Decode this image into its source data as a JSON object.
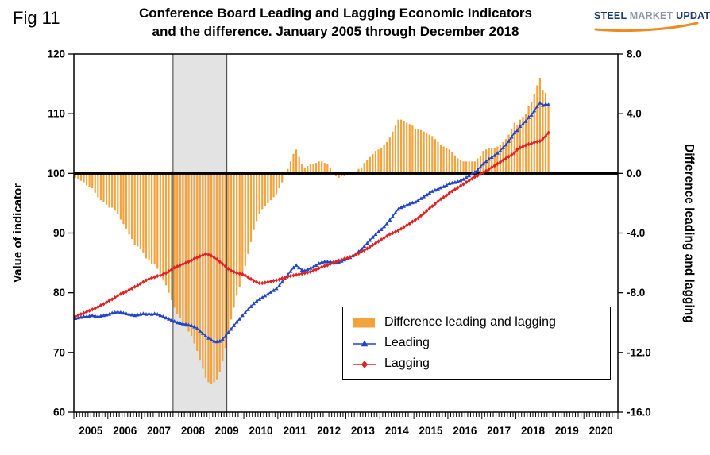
{
  "figure": {
    "fig_label": "Fig 11",
    "title_line1": "Conference Board Leading and Lagging Economic Indicators",
    "title_line2": "and the difference. January 2005 through December 2018"
  },
  "logo": {
    "steel": "STEEL",
    "market": "MARKET",
    "update": "UPDATE",
    "accent_color": "#F08A1C"
  },
  "chart_data": {
    "type": "combo",
    "title": "Conference Board Leading and Lagging Economic Indicators and the difference. January 2005 through December 2018",
    "x": {
      "start": "2005-01",
      "end": "2018-12",
      "frequency": "monthly",
      "axis_start": "2005-01",
      "axis_end": "2020-12",
      "year_labels": [
        2005,
        2006,
        2007,
        2008,
        2009,
        2010,
        2011,
        2012,
        2013,
        2014,
        2015,
        2016,
        2017,
        2018,
        2019,
        2020
      ]
    },
    "left_axis": {
      "label": "Value of indicator",
      "min": 60,
      "max": 120,
      "ticks": [
        120,
        110,
        100,
        90,
        80,
        70,
        60
      ]
    },
    "right_axis": {
      "label": "Difference leading and lagging",
      "min": -16,
      "max": 8,
      "tick_labels": [
        "8.0",
        "4.0",
        "0.0",
        "-4.0",
        "-8.0",
        "-12.0",
        "-16.0"
      ]
    },
    "zero_line_left_value": 100,
    "grid": "off",
    "legend_position": "inside lower right",
    "recession_band": {
      "start": "2007-12",
      "end": "2009-06",
      "fill": "#E3E3E3"
    },
    "series": [
      {
        "name": "Difference leading and lagging",
        "type": "bar",
        "axis": "right",
        "color": "#F2A33C",
        "values": [
          -0.3,
          -0.4,
          -0.5,
          -0.6,
          -0.8,
          -0.9,
          -1.0,
          -1.3,
          -1.6,
          -1.8,
          -1.9,
          -2.1,
          -2.3,
          -2.3,
          -2.5,
          -2.7,
          -3.1,
          -3.4,
          -3.7,
          -4.1,
          -4.4,
          -4.8,
          -4.9,
          -5.1,
          -5.3,
          -5.7,
          -5.8,
          -6.1,
          -6.1,
          -6.4,
          -6.7,
          -7.1,
          -7.5,
          -8.0,
          -8.5,
          -9.0,
          -9.4,
          -9.7,
          -10.0,
          -10.3,
          -10.6,
          -10.9,
          -11.4,
          -11.9,
          -12.5,
          -13.1,
          -13.7,
          -14.0,
          -14.1,
          -14.0,
          -13.8,
          -13.3,
          -12.6,
          -11.7,
          -10.7,
          -9.8,
          -9.0,
          -8.2,
          -7.6,
          -6.9,
          -6.2,
          -5.4,
          -4.6,
          -3.8,
          -3.2,
          -2.7,
          -2.4,
          -2.2,
          -2.0,
          -1.8,
          -1.6,
          -1.4,
          -1.0,
          -0.6,
          -0.1,
          0.3,
          0.8,
          1.3,
          1.6,
          1.1,
          0.6,
          0.4,
          0.5,
          0.6,
          0.6,
          0.7,
          0.8,
          0.8,
          0.7,
          0.6,
          0.4,
          0.1,
          -0.2,
          -0.3,
          -0.2,
          -0.2,
          -0.1,
          -0.1,
          0.0,
          0.1,
          0.3,
          0.4,
          0.7,
          0.9,
          1.1,
          1.3,
          1.5,
          1.6,
          1.7,
          1.9,
          2.1,
          2.4,
          2.8,
          3.2,
          3.6,
          3.6,
          3.5,
          3.4,
          3.3,
          3.2,
          3.0,
          3.0,
          2.9,
          2.8,
          2.7,
          2.6,
          2.5,
          2.3,
          2.1,
          1.9,
          1.8,
          1.7,
          1.6,
          1.4,
          1.2,
          1.0,
          0.9,
          0.8,
          0.8,
          0.8,
          0.8,
          0.8,
          1.0,
          1.2,
          1.5,
          1.6,
          1.7,
          1.7,
          1.7,
          1.8,
          1.9,
          2.1,
          2.3,
          2.6,
          3.0,
          3.4,
          3.2,
          3.6,
          3.8,
          4.0,
          4.5,
          4.8,
          5.3,
          5.9,
          6.4,
          5.6,
          5.4,
          4.7
        ]
      },
      {
        "name": "Leading",
        "type": "line",
        "marker": "triangle",
        "axis": "left",
        "color": "#2244CC",
        "values": [
          75.7,
          75.8,
          75.9,
          76.0,
          76.0,
          76.1,
          76.2,
          76.1,
          76.0,
          76.1,
          76.2,
          76.3,
          76.4,
          76.6,
          76.7,
          76.8,
          76.7,
          76.6,
          76.5,
          76.4,
          76.3,
          76.2,
          76.3,
          76.4,
          76.5,
          76.4,
          76.5,
          76.4,
          76.5,
          76.4,
          76.2,
          76.0,
          75.8,
          75.6,
          75.4,
          75.2,
          75.0,
          74.9,
          74.8,
          74.7,
          74.6,
          74.5,
          74.3,
          74.0,
          73.6,
          73.2,
          72.8,
          72.4,
          72.1,
          71.9,
          71.8,
          71.9,
          72.2,
          72.7,
          73.3,
          73.9,
          74.5,
          75.1,
          75.6,
          76.2,
          76.7,
          77.2,
          77.7,
          78.2,
          78.6,
          78.9,
          79.2,
          79.5,
          79.8,
          80.1,
          80.4,
          80.7,
          81.2,
          81.8,
          82.4,
          83.0,
          83.6,
          84.2,
          84.6,
          84.2,
          83.8,
          83.7,
          83.9,
          84.1,
          84.3,
          84.6,
          84.9,
          85.1,
          85.2,
          85.2,
          85.2,
          85.1,
          85.0,
          85.1,
          85.3,
          85.5,
          85.7,
          85.9,
          86.2,
          86.5,
          86.9,
          87.3,
          87.8,
          88.3,
          88.8,
          89.3,
          89.8,
          90.2,
          90.6,
          91.1,
          91.6,
          92.2,
          92.8,
          93.4,
          94.0,
          94.3,
          94.5,
          94.7,
          94.9,
          95.1,
          95.2,
          95.5,
          95.8,
          96.1,
          96.4,
          96.7,
          97.0,
          97.2,
          97.4,
          97.6,
          97.8,
          98.0,
          98.3,
          98.4,
          98.5,
          98.6,
          98.8,
          99.0,
          99.3,
          99.6,
          99.9,
          100.2,
          100.6,
          101.1,
          101.6,
          102.0,
          102.4,
          102.7,
          103.0,
          103.4,
          103.8,
          104.3,
          104.8,
          105.4,
          106.1,
          106.8,
          107.2,
          107.9,
          108.3,
          108.7,
          109.4,
          109.8,
          110.5,
          111.2,
          111.8,
          111.4,
          111.6,
          111.5
        ]
      },
      {
        "name": "Lagging",
        "type": "line",
        "marker": "diamond",
        "axis": "left",
        "color": "#E02222",
        "values": [
          76.0,
          76.2,
          76.4,
          76.6,
          76.8,
          77.0,
          77.2,
          77.4,
          77.6,
          77.9,
          78.1,
          78.4,
          78.7,
          78.9,
          79.2,
          79.5,
          79.8,
          80.0,
          80.2,
          80.5,
          80.7,
          81.0,
          81.2,
          81.5,
          81.8,
          82.1,
          82.3,
          82.5,
          82.6,
          82.8,
          82.9,
          83.1,
          83.3,
          83.6,
          83.9,
          84.2,
          84.4,
          84.6,
          84.8,
          85.0,
          85.2,
          85.4,
          85.7,
          85.9,
          86.1,
          86.3,
          86.5,
          86.4,
          86.2,
          85.9,
          85.6,
          85.2,
          84.8,
          84.4,
          84.0,
          83.7,
          83.5,
          83.3,
          83.2,
          83.1,
          82.9,
          82.6,
          82.3,
          82.0,
          81.8,
          81.6,
          81.6,
          81.7,
          81.8,
          81.9,
          82.0,
          82.1,
          82.2,
          82.4,
          82.5,
          82.7,
          82.8,
          82.9,
          83.0,
          83.1,
          83.2,
          83.3,
          83.4,
          83.5,
          83.7,
          83.9,
          84.1,
          84.3,
          84.5,
          84.6,
          84.8,
          85.0,
          85.2,
          85.4,
          85.5,
          85.7,
          85.8,
          86.0,
          86.2,
          86.4,
          86.6,
          86.9,
          87.1,
          87.4,
          87.7,
          88.0,
          88.3,
          88.6,
          88.9,
          89.2,
          89.5,
          89.8,
          90.0,
          90.2,
          90.4,
          90.7,
          91.0,
          91.3,
          91.6,
          91.9,
          92.2,
          92.5,
          92.9,
          93.3,
          93.7,
          94.1,
          94.5,
          94.9,
          95.3,
          95.7,
          96.0,
          96.3,
          96.7,
          97.0,
          97.3,
          97.6,
          97.9,
          98.2,
          98.5,
          98.8,
          99.1,
          99.4,
          99.6,
          99.9,
          100.1,
          100.4,
          100.7,
          101.0,
          101.3,
          101.6,
          101.9,
          102.2,
          102.5,
          102.8,
          103.1,
          103.4,
          104.0,
          104.3,
          104.5,
          104.7,
          104.9,
          105.0,
          105.2,
          105.3,
          105.4,
          105.8,
          106.2,
          106.8
        ]
      }
    ]
  }
}
